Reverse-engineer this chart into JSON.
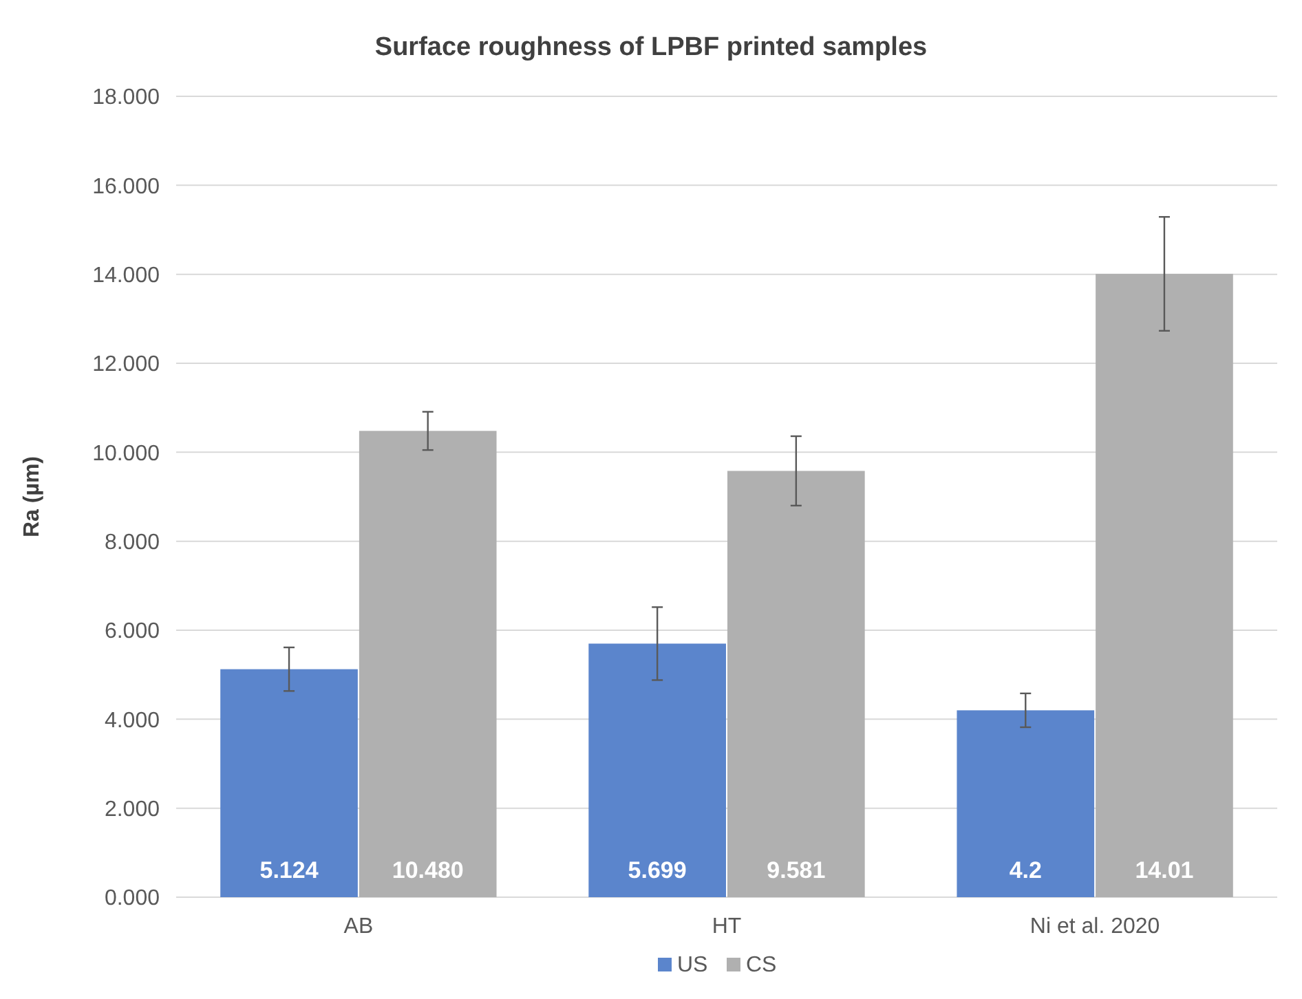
{
  "chart_data": {
    "type": "bar",
    "title": "Surface roughness of LPBF printed samples",
    "ylabel": "Ra (µm)",
    "categories": [
      "AB",
      "HT",
      "Ni et al. 2020"
    ],
    "series": [
      {
        "name": "US",
        "color": "#5b85cc",
        "values": [
          5.124,
          5.699,
          4.2
        ],
        "errors": [
          0.49,
          0.82,
          0.38
        ],
        "value_labels": [
          "5.124",
          "5.699",
          "4.2"
        ]
      },
      {
        "name": "CS",
        "color": "#b0b0b0",
        "values": [
          10.48,
          9.581,
          14.01
        ],
        "errors": [
          0.43,
          0.78,
          1.28
        ],
        "value_labels": [
          "10.480",
          "9.581",
          "14.01"
        ]
      }
    ],
    "ylim": [
      0,
      18
    ],
    "yticks": [
      {
        "value": 0,
        "label": "0.000"
      },
      {
        "value": 2,
        "label": "2.000"
      },
      {
        "value": 4,
        "label": "4.000"
      },
      {
        "value": 6,
        "label": "6.000"
      },
      {
        "value": 8,
        "label": "8.000"
      },
      {
        "value": 10,
        "label": "10.000"
      },
      {
        "value": 12,
        "label": "12.000"
      },
      {
        "value": 14,
        "label": "14.000"
      },
      {
        "value": 16,
        "label": "16.000"
      },
      {
        "value": 18,
        "label": "18.000"
      }
    ],
    "grid": true,
    "legend": "bottom"
  }
}
